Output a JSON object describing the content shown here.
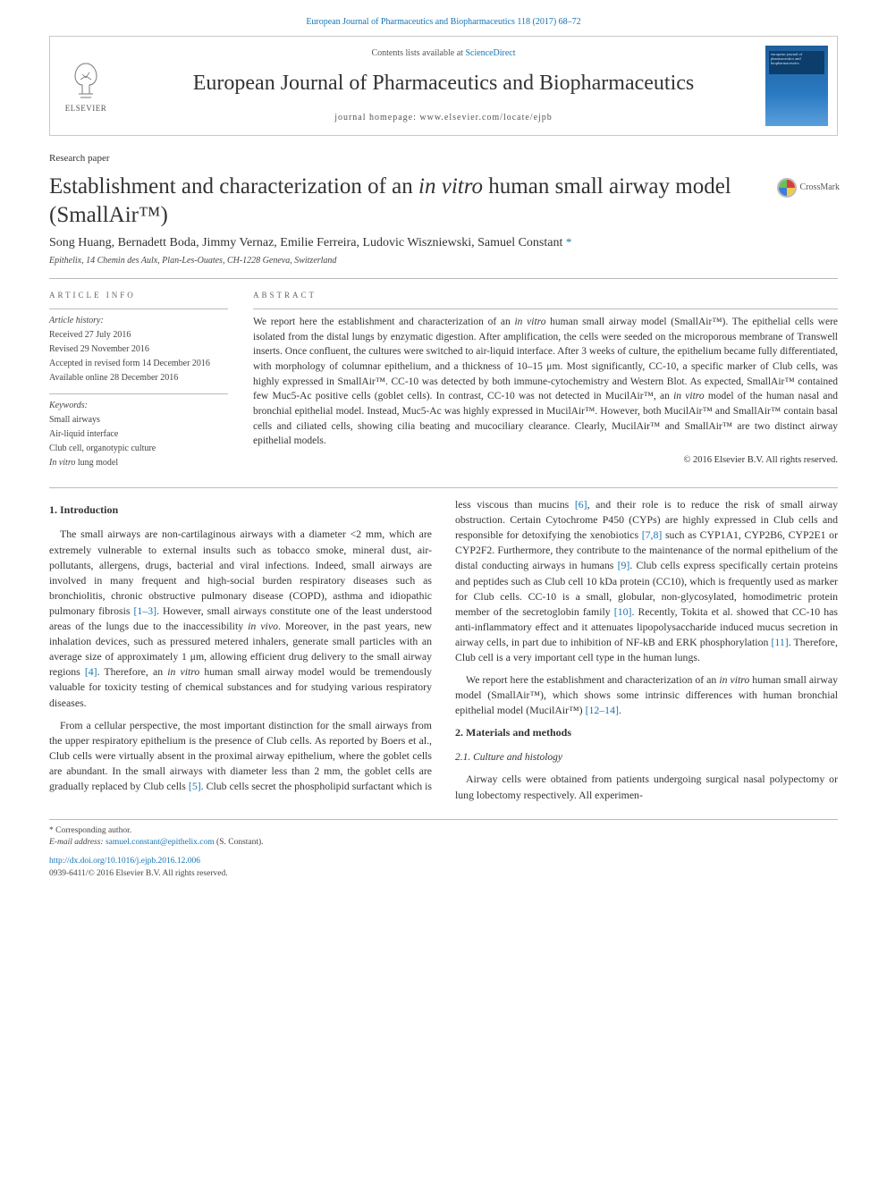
{
  "colors": {
    "link": "#1675b5",
    "border": "#c9c9c9",
    "text": "#333333",
    "muted": "#555555",
    "cover_grad_top": "#1f5e9b",
    "cover_grad_bot": "#5aa0dc"
  },
  "toplink": {
    "journal_short": "European Journal of Pharmaceutics and Biopharmaceutics 118 (2017) 68–72"
  },
  "header": {
    "elsevier_label": "ELSEVIER",
    "contents_line_prefix": "Contents lists available at ",
    "contents_line_link": "ScienceDirect",
    "journal_name": "European Journal of Pharmaceutics and Biopharmaceutics",
    "homepage_label": "journal homepage: www.elsevier.com/locate/ejpb",
    "cover_text": "european journal of pharmaceutics and biopharmaceutics"
  },
  "article": {
    "type": "Research paper",
    "title_html": "Establishment and characterization of an <em class='ital'>in vitro</em> human small airway model (SmallAir™)",
    "crossmark": "CrossMark",
    "authors_html": "Song Huang, Bernadett Boda, Jimmy Vernaz, Emilie Ferreira, Ludovic Wiszniewski, Samuel Constant <span class='corr-star'>*</span>",
    "affiliation": "Epithelix, 14 Chemin des Aulx, Plan-Les-Ouates, CH-1228 Geneva, Switzerland"
  },
  "info": {
    "head": "article info",
    "history_label": "Article history:",
    "history": [
      "Received 27 July 2016",
      "Revised 29 November 2016",
      "Accepted in revised form 14 December 2016",
      "Available online 28 December 2016"
    ],
    "keywords_label": "Keywords:",
    "keywords": [
      "Small airways",
      "Air-liquid interface",
      "Club cell, organotypic culture",
      "In vitro lung model"
    ]
  },
  "abstract": {
    "head": "abstract",
    "text_html": "We report here the establishment and characterization of an <em class='ital'>in vitro</em> human small airway model (SmallAir™). The epithelial cells were isolated from the distal lungs by enzymatic digestion. After amplification, the cells were seeded on the microporous membrane of Transwell inserts. Once confluent, the cultures were switched to air-liquid interface. After 3 weeks of culture, the epithelium became fully differentiated, with morphology of columnar epithelium, and a thickness of 10–15 μm. Most significantly, CC-10, a specific marker of Club cells, was highly expressed in SmallAir™. CC-10 was detected by both immune-cytochemistry and Western Blot. As expected, SmallAir™ contained few Muc5-Ac positive cells (goblet cells). In contrast, CC-10 was not detected in MucilAir™, an <em class='ital'>in vitro</em> model of the human nasal and bronchial epithelial model. Instead, Muc5-Ac was highly expressed in MucilAir™. However, both MucilAir™ and SmallAir™ contain basal cells and ciliated cells, showing cilia beating and mucociliary clearance. Clearly, MucilAir™ and SmallAir™ are two distinct airway epithelial models.",
    "copyright": "© 2016 Elsevier B.V. All rights reserved."
  },
  "body": {
    "sec1_head": "1. Introduction",
    "sec1_p1_html": "The small airways are non-cartilaginous airways with a diameter <2 mm, which are extremely vulnerable to external insults such as tobacco smoke, mineral dust, air-pollutants, allergens, drugs, bacterial and viral infections. Indeed, small airways are involved in many frequent and high-social burden respiratory diseases such as bronchiolitis, chronic obstructive pulmonary disease (COPD), asthma and idiopathic pulmonary fibrosis <span class='ref'>[1–3]</span>. However, small airways constitute one of the least understood areas of the lungs due to the inaccessibility <em class='ital'>in vivo</em>. Moreover, in the past years, new inhalation devices, such as pressured metered inhalers, generate small particles with an average size of approximately 1 μm, allowing efficient drug delivery to the small airway regions <span class='ref'>[4]</span>. Therefore, an <em class='ital'>in vitro</em> human small airway model would be tremendously valuable for toxicity testing of chemical substances and for studying various respiratory diseases.",
    "sec1_p2_html": "From a cellular perspective, the most important distinction for the small airways from the upper respiratory epithelium is the presence of Club cells. As reported by Boers et al., Club cells were virtually absent in the proximal airway epithelium, where the goblet cells are abundant. In the small airways with diameter less than 2 mm, the goblet cells are gradually replaced by Club cells <span class='ref'>[5]</span>. Club cells secret the phospholipid surfactant which is less viscous than mucins <span class='ref'>[6]</span>, and their role is to reduce the risk of small airway obstruction. Certain Cytochrome P450 (CYPs) are highly expressed in Club cells and responsible for detoxifying the xenobiotics <span class='ref'>[7,8]</span> such as CYP1A1, CYP2B6, CYP2E1 or CYP2F2. Furthermore, they contribute to the maintenance of the normal epithelium of the distal conducting airways in humans <span class='ref'>[9]</span>. Club cells express specifically certain proteins and peptides such as Club cell 10 kDa protein (CC10), which is frequently used as marker for Club cells. CC-10 is a small, globular, non-glycosylated, homodimetric protein member of the secretoglobin family <span class='ref'>[10]</span>. Recently, Tokita et al. showed that CC-10 has anti-inflammatory effect and it attenuates lipopolysaccharide induced mucus secretion in airway cells, in part due to inhibition of NF-kB and ERK phosphorylation <span class='ref'>[11]</span>. Therefore, Club cell is a very important cell type in the human lungs.",
    "sec1_p3_html": "We report here the establishment and characterization of an <em class='ital'>in vitro</em> human small airway model (SmallAir™), which shows some intrinsic differences with human bronchial epithelial model (MucilAir™) <span class='ref'>[12–14]</span>.",
    "sec2_head": "2. Materials and methods",
    "sec2_1_head": "2.1. Culture and histology",
    "sec2_1_p1": "Airway cells were obtained from patients undergoing surgical nasal polypectomy or lung lobectomy respectively. All experimen-"
  },
  "footer": {
    "corr_label": "* Corresponding author.",
    "email_label": "E-mail address: ",
    "email": "samuel.constant@epithelix.com",
    "email_who": " (S. Constant).",
    "doi": "http://dx.doi.org/10.1016/j.ejpb.2016.12.006",
    "issn_line": "0939-6411/© 2016 Elsevier B.V. All rights reserved."
  }
}
